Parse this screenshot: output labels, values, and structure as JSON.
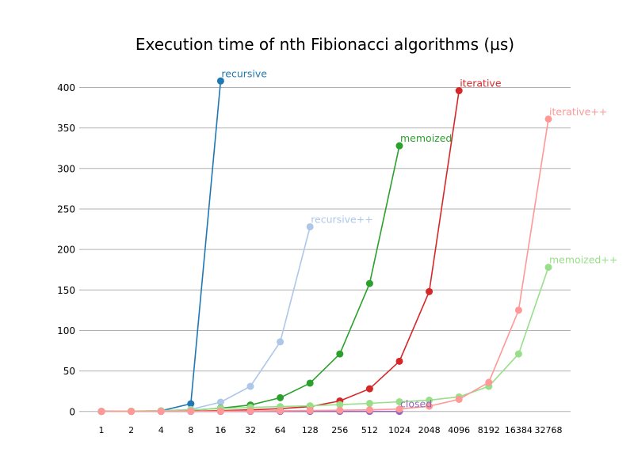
{
  "chart_data": {
    "type": "line",
    "title": "Execution time of nth Fibionacci algorithms (µs)",
    "xlabel": "",
    "ylabel": "",
    "x_scale": "log2",
    "x": [
      1,
      2,
      4,
      8,
      16,
      32,
      64,
      128,
      256,
      512,
      1024,
      2048,
      4096,
      8192,
      16384,
      32768
    ],
    "x_tick_labels": [
      "1",
      "2",
      "4",
      "8",
      "16",
      "32",
      "64",
      "128",
      "256",
      "512",
      "1024",
      "2048",
      "4096",
      "8192",
      "16384",
      "32768"
    ],
    "y_ticks": [
      0,
      50,
      100,
      150,
      200,
      250,
      300,
      350,
      400
    ],
    "ylim": [
      -10,
      420
    ],
    "grid": "y",
    "legend": "inline labels at series ends",
    "series": [
      {
        "name": "recursive",
        "color": "#1f77b4",
        "x": [
          1,
          2,
          4,
          8,
          16
        ],
        "values": [
          0.2,
          0.3,
          0.8,
          9.5,
          408
        ]
      },
      {
        "name": "recursive++",
        "color": "#aec7e8",
        "x": [
          1,
          2,
          4,
          8,
          16,
          32,
          64,
          128
        ],
        "values": [
          0.2,
          0.3,
          0.6,
          2.5,
          11.5,
          31,
          86,
          228
        ]
      },
      {
        "name": "memoized",
        "color": "#2ca02c",
        "x": [
          1,
          2,
          4,
          8,
          16,
          32,
          64,
          128,
          256,
          512,
          1024
        ],
        "values": [
          0.2,
          0.3,
          0.5,
          1.5,
          4,
          8,
          17,
          35,
          71,
          158,
          328
        ]
      },
      {
        "name": "iterative",
        "color": "#d62728",
        "x": [
          1,
          2,
          4,
          8,
          16,
          32,
          64,
          128,
          256,
          512,
          1024,
          2048,
          4096
        ],
        "values": [
          0.1,
          0.2,
          0.3,
          0.5,
          1,
          2,
          3.5,
          6,
          13,
          28,
          62,
          148,
          396
        ]
      },
      {
        "name": "closed",
        "color": "#9467bd",
        "x": [
          1,
          2,
          4,
          8,
          16,
          32,
          64,
          128,
          256,
          512,
          1024
        ],
        "values": [
          0.1,
          0.1,
          0.1,
          0.1,
          0.1,
          0.1,
          0.1,
          0.1,
          0.1,
          0.1,
          0.1
        ]
      },
      {
        "name": "memoized++",
        "color": "#98df8a",
        "x": [
          1,
          2,
          4,
          8,
          16,
          32,
          64,
          128,
          256,
          512,
          1024,
          2048,
          4096,
          8192,
          16384,
          32768
        ],
        "values": [
          0.3,
          0.5,
          1,
          2,
          3.5,
          5,
          6,
          7,
          8.5,
          10,
          12,
          14,
          18,
          31,
          71,
          178
        ]
      },
      {
        "name": "iterative++",
        "color": "#ff9896",
        "x": [
          1,
          2,
          4,
          8,
          16,
          32,
          64,
          128,
          256,
          512,
          1024,
          2048,
          4096,
          8192,
          16384,
          32768
        ],
        "values": [
          0.1,
          0.1,
          0.2,
          0.3,
          0.4,
          0.6,
          0.9,
          1.2,
          1.5,
          2,
          3,
          6.5,
          15,
          36,
          125,
          361
        ]
      }
    ]
  }
}
